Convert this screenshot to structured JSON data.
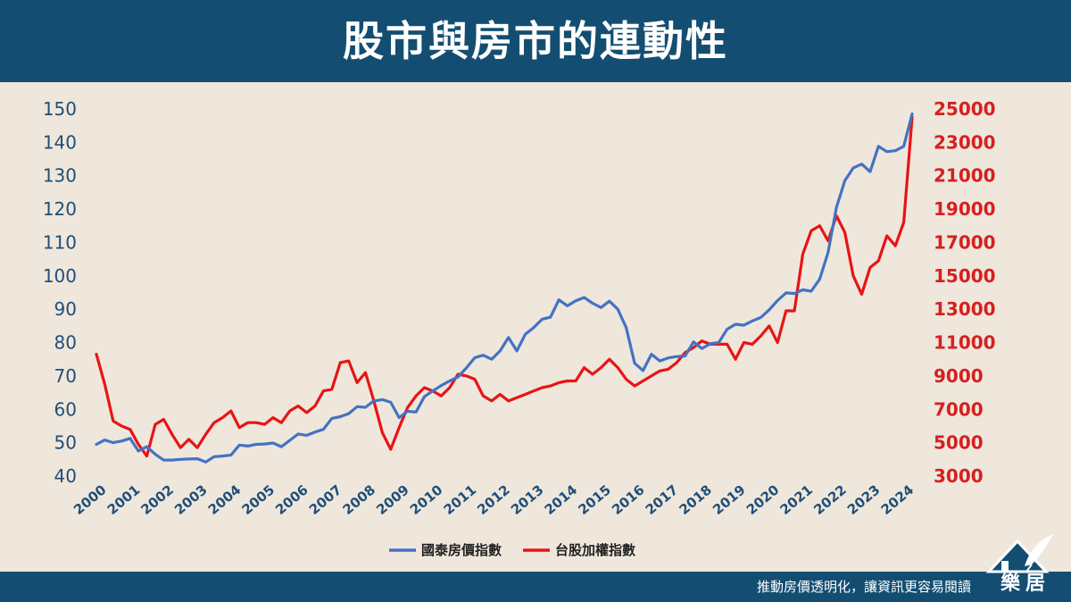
{
  "header": {
    "title": "股市與房市的連動性"
  },
  "footer": {
    "slogan": "推動房價透明化，讓資訊更容易閱讀",
    "logo_text": "樂居",
    "logo_icon": "house-pen-icon"
  },
  "colors": {
    "header_bg": "#134e72",
    "page_bg": "#efe7dc",
    "housing": "#4472c4",
    "stock": "#e81414",
    "left_axis": "#1f4e79",
    "right_axis": "#d62020"
  },
  "chart_data": {
    "type": "line",
    "title": "",
    "x_ticks": [
      "2000",
      "2001",
      "2002",
      "2003",
      "2004",
      "2005",
      "2006",
      "2007",
      "2008",
      "2009",
      "2010",
      "2011",
      "2012",
      "2013",
      "2014",
      "2015",
      "2016",
      "2017",
      "2018",
      "2019",
      "2020",
      "2021",
      "2022",
      "2023",
      "2024"
    ],
    "y_left": {
      "ylim": [
        40,
        150
      ],
      "ticks": [
        40,
        50,
        60,
        70,
        80,
        90,
        100,
        110,
        120,
        130,
        140,
        150
      ]
    },
    "y_right": {
      "ylim": [
        3000,
        25000
      ],
      "ticks": [
        3000,
        5000,
        7000,
        9000,
        11000,
        13000,
        15000,
        17000,
        19000,
        21000,
        23000,
        25000
      ]
    },
    "legend_position": "bottom",
    "grid": false,
    "series": [
      {
        "name": "國泰房價指數",
        "axis": "left",
        "color": "#4472c4",
        "x": [
          2000.0,
          2000.25,
          2000.5,
          2000.75,
          2001.0,
          2001.25,
          2001.5,
          2001.75,
          2002.0,
          2002.25,
          2002.5,
          2002.75,
          2003.0,
          2003.25,
          2003.5,
          2003.75,
          2004.0,
          2004.25,
          2004.5,
          2004.75,
          2005.0,
          2005.25,
          2005.5,
          2005.75,
          2006.0,
          2006.25,
          2006.5,
          2006.75,
          2007.0,
          2007.25,
          2007.5,
          2007.75,
          2008.0,
          2008.25,
          2008.5,
          2008.75,
          2009.0,
          2009.25,
          2009.5,
          2009.75,
          2010.0,
          2010.25,
          2010.5,
          2010.75,
          2011.0,
          2011.25,
          2011.5,
          2011.75,
          2012.0,
          2012.25,
          2012.5,
          2012.75,
          2013.0,
          2013.25,
          2013.5,
          2013.75,
          2014.0,
          2014.25,
          2014.5,
          2014.75,
          2015.0,
          2015.25,
          2015.5,
          2015.75,
          2016.0,
          2016.25,
          2016.5,
          2016.75,
          2017.0,
          2017.25,
          2017.5,
          2017.75,
          2018.0,
          2018.25,
          2018.5,
          2018.75,
          2019.0,
          2019.25,
          2019.5,
          2019.75,
          2020.0,
          2020.25,
          2020.5,
          2020.75,
          2021.0,
          2021.25,
          2021.5,
          2021.75,
          2022.0,
          2022.25,
          2022.5,
          2022.75,
          2023.0,
          2023.25,
          2023.5,
          2023.75,
          2024.0,
          2024.25
        ],
        "values": [
          49.5,
          50.8,
          50.0,
          50.5,
          51.3,
          47.5,
          48.8,
          46.5,
          44.8,
          44.8,
          45.0,
          45.1,
          45.2,
          44.2,
          45.8,
          46.0,
          46.3,
          49.3,
          49.0,
          49.5,
          49.6,
          49.9,
          48.8,
          50.7,
          52.6,
          52.2,
          53.2,
          54.0,
          57.3,
          57.8,
          58.7,
          60.8,
          60.6,
          62.5,
          62.9,
          62.1,
          57.5,
          59.4,
          59.2,
          63.8,
          65.5,
          67.1,
          68.5,
          69.7,
          72.4,
          75.5,
          76.2,
          75.0,
          77.5,
          81.5,
          77.5,
          82.5,
          84.5,
          87.0,
          87.6,
          92.8,
          91.0,
          92.5,
          93.5,
          91.8,
          90.5,
          92.4,
          90.0,
          84.5,
          73.8,
          71.6,
          76.5,
          74.5,
          75.4,
          75.8,
          76.0,
          80.2,
          78.2,
          79.7,
          80.0,
          84.0,
          85.5,
          85.2,
          86.5,
          87.5,
          89.8,
          92.6,
          94.9,
          94.7,
          95.8,
          95.4,
          99.0,
          107.0,
          120.5,
          128.5,
          132.3,
          133.5,
          131.2,
          138.8,
          137.2,
          137.5,
          138.8,
          148.5
        ]
      },
      {
        "name": "台股加權指數",
        "axis": "right",
        "color": "#e81414",
        "x": [
          2000.0,
          2000.25,
          2000.5,
          2000.75,
          2001.0,
          2001.25,
          2001.5,
          2001.75,
          2002.0,
          2002.25,
          2002.5,
          2002.75,
          2003.0,
          2003.25,
          2003.5,
          2003.75,
          2004.0,
          2004.25,
          2004.5,
          2004.75,
          2005.0,
          2005.25,
          2005.5,
          2005.75,
          2006.0,
          2006.25,
          2006.5,
          2006.75,
          2007.0,
          2007.25,
          2007.5,
          2007.75,
          2008.0,
          2008.25,
          2008.5,
          2008.75,
          2009.0,
          2009.25,
          2009.5,
          2009.75,
          2010.0,
          2010.25,
          2010.5,
          2010.75,
          2011.0,
          2011.25,
          2011.5,
          2011.75,
          2012.0,
          2012.25,
          2012.5,
          2012.75,
          2013.0,
          2013.25,
          2013.5,
          2013.75,
          2014.0,
          2014.25,
          2014.5,
          2014.75,
          2015.0,
          2015.25,
          2015.5,
          2015.75,
          2016.0,
          2016.25,
          2016.5,
          2016.75,
          2017.0,
          2017.25,
          2017.5,
          2017.75,
          2018.0,
          2018.25,
          2018.5,
          2018.75,
          2019.0,
          2019.25,
          2019.5,
          2019.75,
          2020.0,
          2020.25,
          2020.5,
          2020.75,
          2021.0,
          2021.25,
          2021.5,
          2021.75,
          2022.0,
          2022.25,
          2022.5,
          2022.75,
          2023.0,
          2023.25,
          2023.5,
          2023.75,
          2024.0,
          2024.25
        ],
        "values": [
          10300,
          8500,
          6300,
          6000,
          5800,
          4900,
          4200,
          6100,
          6400,
          5500,
          4700,
          5200,
          4700,
          5500,
          6200,
          6500,
          6900,
          5900,
          6200,
          6200,
          6100,
          6500,
          6200,
          6900,
          7200,
          6800,
          7200,
          8100,
          8200,
          9800,
          9900,
          8600,
          9200,
          7500,
          5600,
          4600,
          5900,
          7100,
          7800,
          8300,
          8100,
          7800,
          8300,
          9100,
          9000,
          8800,
          7800,
          7500,
          7900,
          7500,
          7700,
          7900,
          8100,
          8300,
          8400,
          8600,
          8700,
          8700,
          9500,
          9100,
          9500,
          10000,
          9500,
          8800,
          8400,
          8700,
          9000,
          9300,
          9400,
          9800,
          10400,
          10700,
          11100,
          10900,
          10900,
          10900,
          10000,
          11000,
          10900,
          11400,
          12000,
          11000,
          12900,
          12900,
          16300,
          17700,
          18000,
          17100,
          18600,
          17600,
          15000,
          13900,
          15500,
          15900,
          17400,
          16800,
          18200,
          24500
        ]
      }
    ]
  }
}
